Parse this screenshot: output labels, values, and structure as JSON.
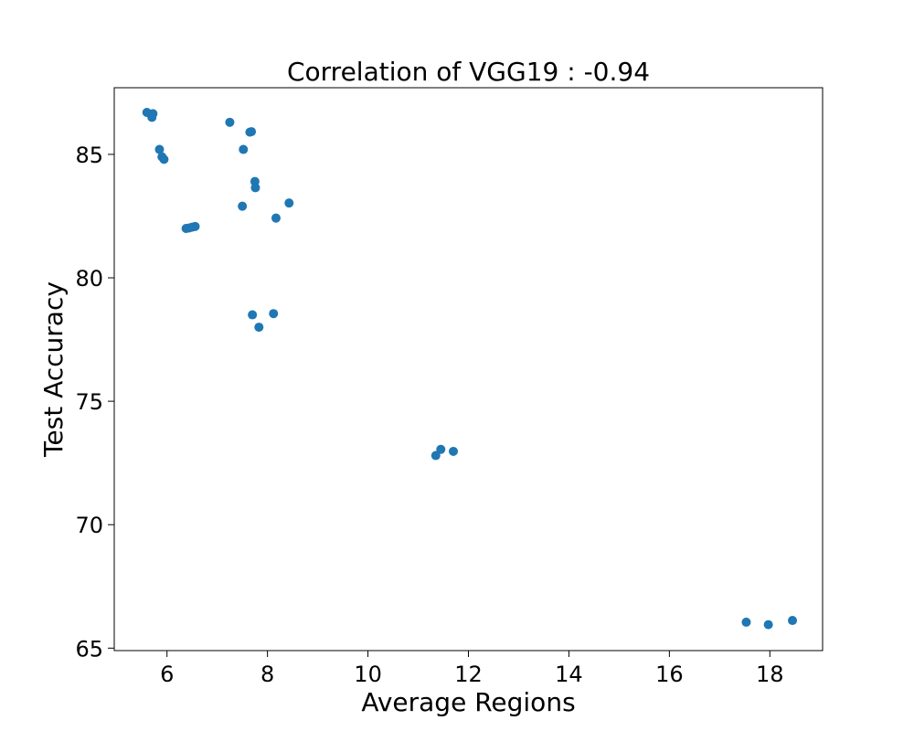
{
  "chart_data": {
    "type": "scatter",
    "title": "Correlation of VGG19 : -0.94",
    "xlabel": "Average Regions",
    "ylabel": "Test Accuracy",
    "xlim": [
      4.95,
      19.05
    ],
    "ylim": [
      64.9,
      87.7
    ],
    "xticks": [
      6,
      8,
      10,
      12,
      14,
      16,
      18
    ],
    "yticks": [
      65,
      70,
      75,
      80,
      85
    ],
    "grid": false,
    "legend": "none",
    "color": "#1f77b4",
    "points": [
      {
        "x": 5.6,
        "y": 86.7
      },
      {
        "x": 5.72,
        "y": 86.65
      },
      {
        "x": 5.7,
        "y": 86.5
      },
      {
        "x": 5.85,
        "y": 85.2
      },
      {
        "x": 5.9,
        "y": 84.9
      },
      {
        "x": 5.94,
        "y": 84.8
      },
      {
        "x": 6.38,
        "y": 82.0
      },
      {
        "x": 6.44,
        "y": 82.02
      },
      {
        "x": 6.5,
        "y": 82.05
      },
      {
        "x": 6.56,
        "y": 82.08
      },
      {
        "x": 7.25,
        "y": 86.3
      },
      {
        "x": 7.65,
        "y": 85.9
      },
      {
        "x": 7.68,
        "y": 85.92
      },
      {
        "x": 7.52,
        "y": 85.2
      },
      {
        "x": 7.75,
        "y": 83.9
      },
      {
        "x": 7.76,
        "y": 83.65
      },
      {
        "x": 7.5,
        "y": 82.9
      },
      {
        "x": 8.17,
        "y": 82.42
      },
      {
        "x": 8.43,
        "y": 83.03
      },
      {
        "x": 7.7,
        "y": 78.5
      },
      {
        "x": 8.12,
        "y": 78.55
      },
      {
        "x": 7.83,
        "y": 78.0
      },
      {
        "x": 11.35,
        "y": 72.8
      },
      {
        "x": 11.45,
        "y": 73.05
      },
      {
        "x": 11.7,
        "y": 72.97
      },
      {
        "x": 17.53,
        "y": 66.05
      },
      {
        "x": 17.97,
        "y": 65.95
      },
      {
        "x": 18.45,
        "y": 66.12
      }
    ]
  }
}
